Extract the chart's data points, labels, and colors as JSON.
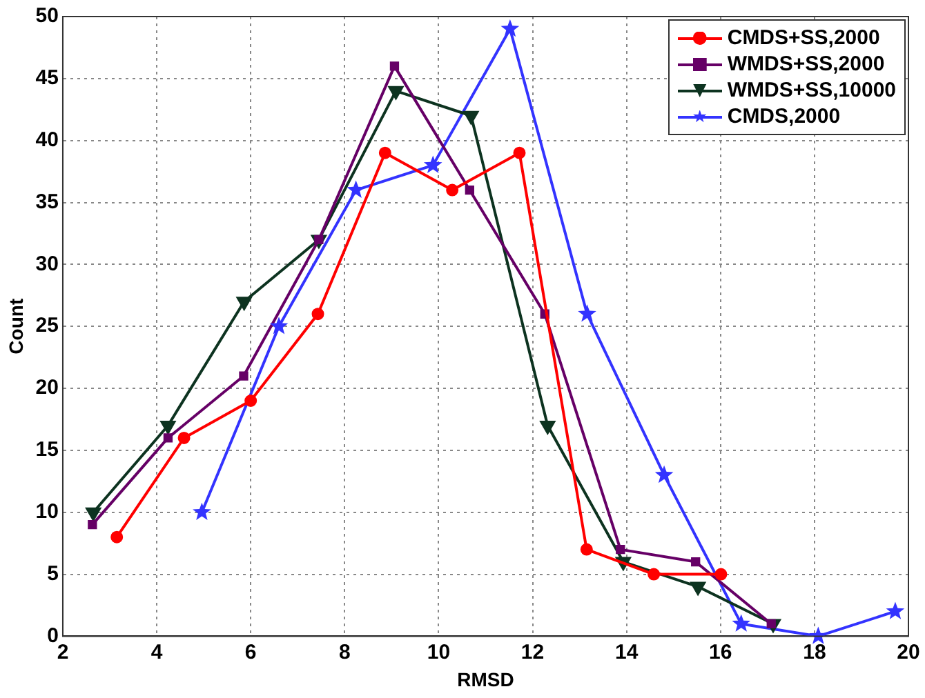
{
  "chart_data": {
    "type": "line",
    "xlabel": "RMSD",
    "ylabel": "Count",
    "xlim": [
      2,
      20
    ],
    "xticks": [
      2,
      4,
      6,
      8,
      10,
      12,
      14,
      16,
      18,
      20
    ],
    "ylim": [
      0,
      50
    ],
    "yticks": [
      0,
      5,
      10,
      15,
      20,
      25,
      30,
      35,
      40,
      45,
      50
    ],
    "grid": true,
    "legend": "top right",
    "line_style": "solid",
    "series": [
      {
        "name": "CMDS+SS,2000",
        "color": "#ff0000",
        "marker": "circle",
        "x": [
          3.15,
          4.58,
          6.0,
          7.43,
          8.86,
          10.29,
          11.72,
          13.15,
          14.58,
          16.01
        ],
        "values": [
          8,
          16,
          19,
          26,
          39,
          36,
          39,
          7,
          5,
          5
        ]
      },
      {
        "name": "WMDS+SS,2000",
        "color": "#660066",
        "marker": "square",
        "x": [
          2.63,
          4.24,
          5.85,
          7.45,
          9.06,
          10.66,
          12.26,
          13.87,
          15.47,
          17.08
        ],
        "values": [
          9,
          16,
          21,
          32,
          46,
          36,
          26,
          7,
          6,
          1
        ]
      },
      {
        "name": "WMDS+SS,10000",
        "color": "#0d3320",
        "marker": "triangle",
        "x": [
          2.65,
          4.24,
          5.86,
          7.45,
          9.09,
          10.69,
          12.32,
          13.93,
          15.52,
          17.12
        ],
        "values": [
          10,
          17,
          27,
          32,
          44,
          42,
          17,
          6,
          4,
          1
        ]
      },
      {
        "name": "CMDS,2000",
        "color": "#3333ff",
        "marker": "star",
        "x": [
          4.96,
          6.6,
          8.24,
          9.88,
          11.52,
          13.16,
          14.8,
          16.44,
          18.08,
          19.72
        ],
        "values": [
          10,
          25,
          36,
          38,
          49,
          26,
          13,
          1,
          0,
          2
        ]
      }
    ]
  }
}
